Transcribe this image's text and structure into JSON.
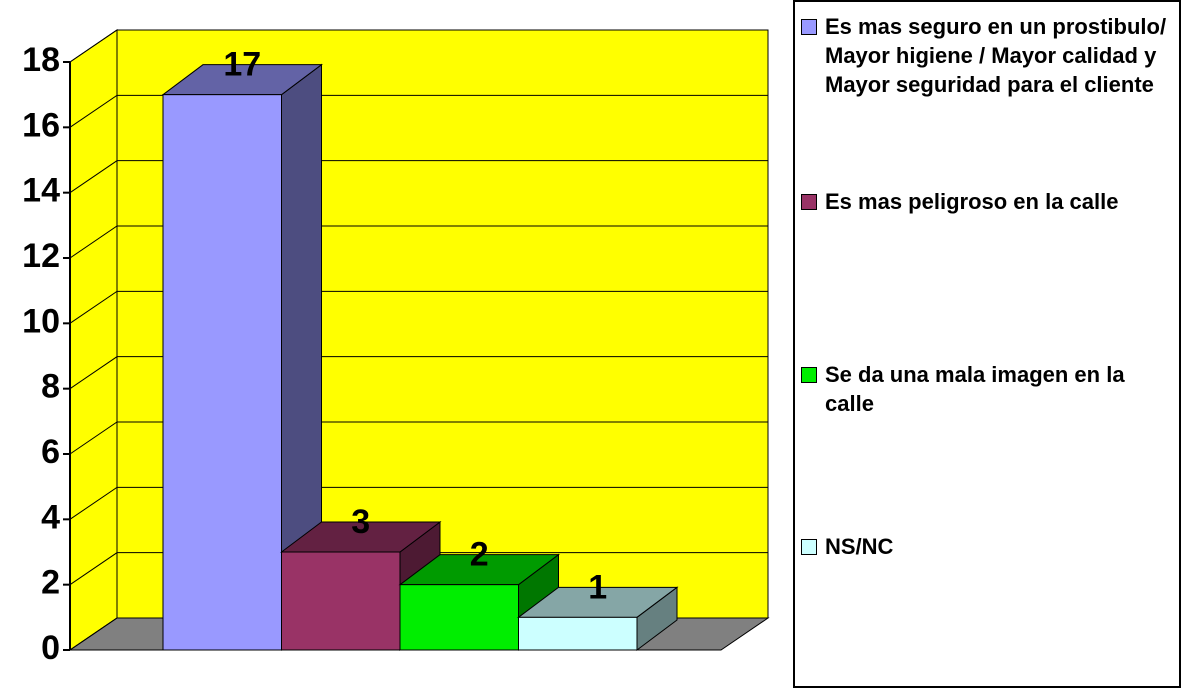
{
  "chart_data": {
    "type": "bar3d",
    "series": [
      {
        "name": "Es mas seguro en un prostibulo/ Mayor higiene / Mayor calidad y Mayor seguridad para el cliente",
        "color": "#9999ff",
        "values": [
          17
        ]
      },
      {
        "name": "Es mas peligroso en la calle",
        "color": "#993366",
        "values": [
          3
        ]
      },
      {
        "name": "Se da una mala imagen en la calle",
        "color": "#00ee00",
        "values": [
          2
        ]
      },
      {
        "name": "NS/NC",
        "color": "#ccffff",
        "values": [
          1
        ]
      }
    ],
    "ylim": [
      0,
      18
    ],
    "yticks": [
      0,
      2,
      4,
      6,
      8,
      10,
      12,
      14,
      16,
      18
    ],
    "grid": true,
    "wall_color": "#ffff00",
    "floor_color": "#808080",
    "legend": "right"
  }
}
